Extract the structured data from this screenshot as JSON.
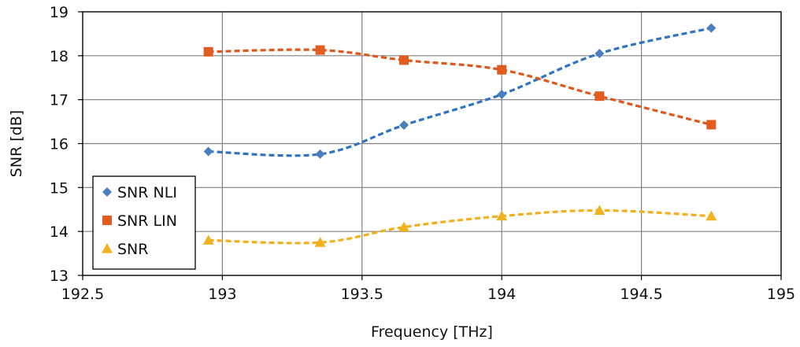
{
  "chart_data": {
    "type": "scatter",
    "xlabel": "Frequency [THz]",
    "ylabel": "SNR [dB]",
    "xlim": [
      192.5,
      195
    ],
    "ylim": [
      13,
      19
    ],
    "xticks": [
      "192.5",
      "193",
      "193.5",
      "194",
      "194.5",
      "195"
    ],
    "yticks": [
      "13",
      "14",
      "15",
      "16",
      "17",
      "18",
      "19"
    ],
    "grid": true,
    "legend_position": "bottom-left",
    "trendlines": "dashed polynomial",
    "series": [
      {
        "name": "SNR NLI",
        "marker": "diamond",
        "color": "#4a7ebf",
        "trend_color": "#2f74c0",
        "x": [
          192.95,
          193.35,
          193.65,
          194.0,
          194.35,
          194.75
        ],
        "y": [
          15.82,
          15.76,
          16.42,
          17.12,
          18.05,
          18.63
        ]
      },
      {
        "name": "SNR LIN",
        "marker": "square",
        "color": "#e25b1f",
        "trend_color": "#e0561b",
        "x": [
          192.95,
          193.35,
          193.65,
          194.0,
          194.35,
          194.75
        ],
        "y": [
          18.09,
          18.13,
          17.9,
          17.68,
          17.08,
          16.43
        ]
      },
      {
        "name": "SNR",
        "marker": "triangle",
        "color": "#f0b21e",
        "trend_color": "#f2b01a",
        "x": [
          192.95,
          193.35,
          193.65,
          194.0,
          194.35,
          194.75
        ],
        "y": [
          13.8,
          13.75,
          14.1,
          14.35,
          14.48,
          14.35
        ]
      }
    ]
  }
}
